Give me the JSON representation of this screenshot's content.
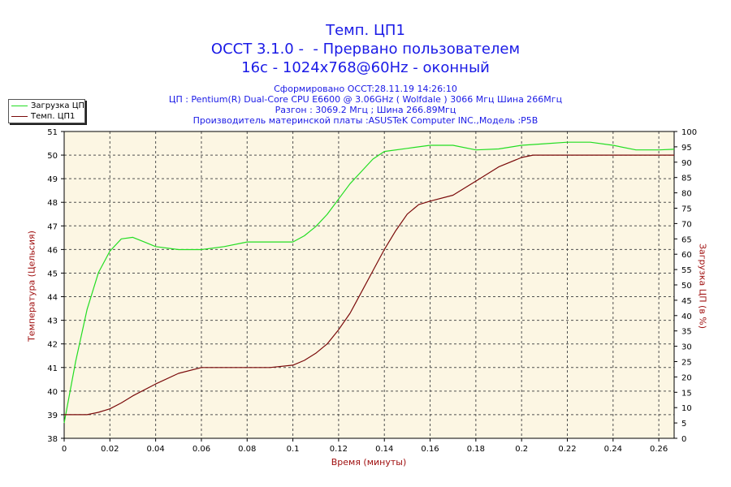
{
  "header": {
    "title_lines": [
      "Темп. ЦП1",
      "OCCT 3.1.0 -  - Прервано пользователем",
      "16с - 1024x768@60Hz - оконный"
    ],
    "info_lines": [
      "Сформировано OCCT:28.11.19 14:26:10",
      "ЦП : Pentium(R) Dual-Core CPU E6600 @ 3.06GHz ( Wolfdale ) 3066 Мгц Шина 266Мгц",
      "Разгон : 3069.2 Мгц ; Шина 266.89Мгц",
      "Производитель материнской платы :ASUSTeK Computer INC.,Модель :P5B"
    ]
  },
  "legend": {
    "items": [
      {
        "label": "Загрузка ЦП",
        "color": "#22dd22"
      },
      {
        "label": "Темп. ЦП1",
        "color": "#7a0a0a"
      }
    ]
  },
  "colors": {
    "plot_background": "#fcf6e3",
    "grid": "#505050",
    "axis_text": "#000000",
    "axis_title": "#a01010",
    "title": "#1a1ae6"
  },
  "chart_data": {
    "type": "line",
    "xlabel": "Время (минуты)",
    "ylabel_left": "Температура (Цельсия)",
    "ylabel_right": "Загрузка ЦП (в %)",
    "xlim": [
      0,
      0.2667
    ],
    "ylim_left": [
      38,
      51
    ],
    "ylim_right": [
      0,
      100
    ],
    "x_ticks": [
      "0",
      "0.02",
      "0.04",
      "0.06",
      "0.08",
      "0.1",
      "0.12",
      "0.14",
      "0.16",
      "0.18",
      "0.2",
      "0.22",
      "0.24",
      "0.26"
    ],
    "y_left_ticks": [
      "38",
      "39",
      "40",
      "41",
      "42",
      "43",
      "44",
      "45",
      "46",
      "47",
      "48",
      "49",
      "50",
      "51"
    ],
    "y_right_ticks": [
      "0",
      "5",
      "10",
      "15",
      "20",
      "25",
      "30",
      "35",
      "40",
      "45",
      "50",
      "55",
      "60",
      "65",
      "70",
      "75",
      "80",
      "85",
      "90",
      "95",
      "100"
    ],
    "grid": true,
    "legend_position": "top-left",
    "series": [
      {
        "name": "Загрузка ЦП",
        "axis": "right",
        "color": "#22dd22",
        "x": [
          0,
          0.005,
          0.01,
          0.015,
          0.02,
          0.025,
          0.03,
          0.035,
          0.04,
          0.05,
          0.06,
          0.07,
          0.08,
          0.09,
          0.1,
          0.105,
          0.11,
          0.115,
          0.12,
          0.125,
          0.13,
          0.135,
          0.14,
          0.15,
          0.16,
          0.17,
          0.18,
          0.19,
          0.2,
          0.21,
          0.22,
          0.23,
          0.24,
          0.25,
          0.26,
          0.2667
        ],
        "values": [
          5,
          25,
          42,
          54,
          61,
          65,
          65.5,
          64,
          62.5,
          61.5,
          61.5,
          62.5,
          64,
          64,
          64,
          66,
          69,
          73,
          78,
          83,
          87,
          91,
          93.5,
          94.5,
          95.5,
          95.5,
          94,
          94.3,
          95.5,
          96,
          96.5,
          96.5,
          95.5,
          94,
          94,
          94.2
        ]
      },
      {
        "name": "Темп. ЦП1",
        "axis": "left",
        "color": "#7a0a0a",
        "x": [
          0,
          0.01,
          0.015,
          0.02,
          0.025,
          0.03,
          0.04,
          0.05,
          0.06,
          0.07,
          0.08,
          0.09,
          0.1,
          0.105,
          0.11,
          0.115,
          0.12,
          0.125,
          0.13,
          0.135,
          0.14,
          0.145,
          0.15,
          0.155,
          0.16,
          0.17,
          0.18,
          0.19,
          0.2,
          0.205,
          0.21,
          0.22,
          0.23,
          0.24,
          0.25,
          0.26,
          0.2667
        ],
        "values": [
          39,
          39,
          39.1,
          39.25,
          39.5,
          39.8,
          40.3,
          40.75,
          41,
          41,
          41,
          41,
          41.1,
          41.3,
          41.6,
          42,
          42.6,
          43.3,
          44.2,
          45.1,
          46,
          46.8,
          47.5,
          47.9,
          48.05,
          48.3,
          48.9,
          49.5,
          49.9,
          50,
          50,
          50,
          50,
          50,
          50,
          50,
          50
        ]
      }
    ]
  }
}
